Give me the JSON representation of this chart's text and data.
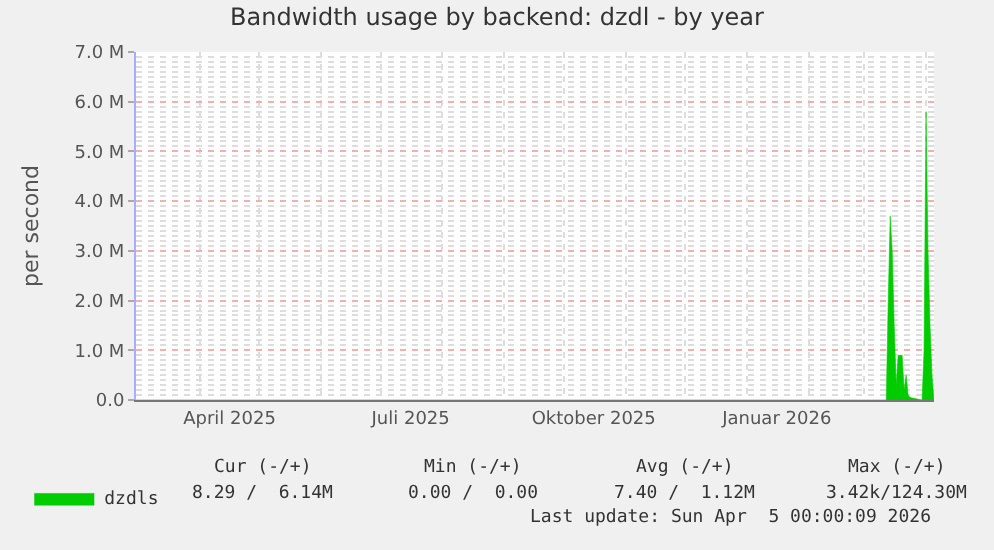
{
  "chart_data": {
    "type": "area",
    "title": "Bandwidth usage by backend: dzdl - by year",
    "ylabel": "per second",
    "x": [
      "2025-02-28",
      "2026-03-12",
      "2026-03-13",
      "2026-03-14",
      "2026-03-15",
      "2026-03-16",
      "2026-03-17",
      "2026-03-18",
      "2026-03-19",
      "2026-03-20",
      "2026-03-21",
      "2026-03-22",
      "2026-03-23",
      "2026-03-24",
      "2026-03-30",
      "2026-03-31",
      "2026-04-01",
      "2026-04-02",
      "2026-04-03",
      "2026-04-04",
      "2026-04-05"
    ],
    "series": [
      {
        "name": "dzdls",
        "color": "#00cc00",
        "values": [
          0,
          0,
          2000000,
          3700000,
          3000000,
          1500000,
          300000,
          900000,
          900000,
          900000,
          200000,
          500000,
          100000,
          50000,
          0,
          1000000,
          5800000,
          3000000,
          1500000,
          500000,
          0
        ]
      }
    ],
    "xlim": [
      "2025-02-28",
      "2026-04-05"
    ],
    "xticks": [
      {
        "value": "2025-04-16",
        "label": "April 2025"
      },
      {
        "value": "2025-07-16",
        "label": "Juli 2025"
      },
      {
        "value": "2025-10-16",
        "label": "Oktober 2025"
      },
      {
        "value": "2026-01-16",
        "label": "Januar 2026"
      }
    ],
    "ylim": [
      0,
      7000000
    ],
    "yticks": [
      {
        "value": 0,
        "label": "0.0"
      },
      {
        "value": 1000000,
        "label": "1.0 M"
      },
      {
        "value": 2000000,
        "label": "2.0 M"
      },
      {
        "value": 3000000,
        "label": "3.0 M"
      },
      {
        "value": 4000000,
        "label": "4.0 M"
      },
      {
        "value": 5000000,
        "label": "5.0 M"
      },
      {
        "value": 6000000,
        "label": "6.0 M"
      },
      {
        "value": 7000000,
        "label": "7.0 M"
      }
    ],
    "grid": true,
    "legend": "bottom left",
    "annotations": [
      "Cur (-/+)",
      "Min (-/+)",
      "Avg (-/+)",
      "Max (-/+)",
      "8.29 /  6.14M",
      "0.00 /  0.00",
      "7.40 /  1.12M",
      "3.42k/124.30M",
      "Last update: Sun Apr  5 00:00:09 2026"
    ]
  }
}
